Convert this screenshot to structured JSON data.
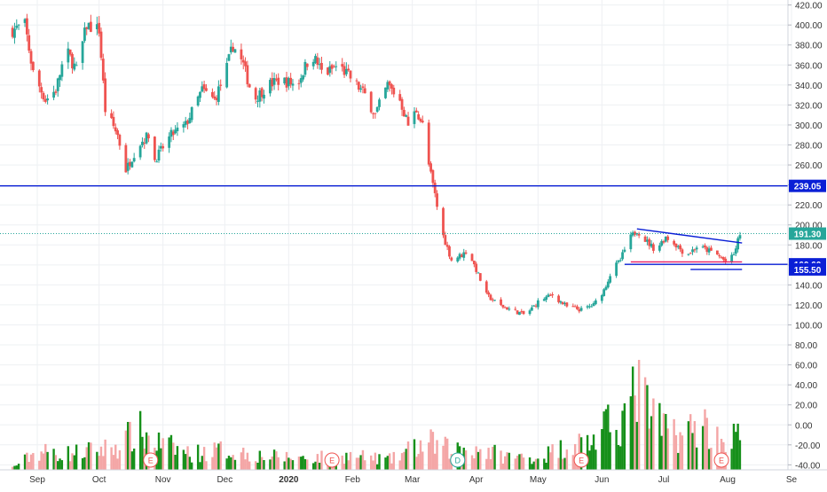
{
  "chart_data": {
    "type": "candlestick",
    "title": "",
    "xlabel": "",
    "ylabel": "",
    "ylim": [
      -45,
      425
    ],
    "grid": true,
    "y_ticks": [
      "420.00",
      "400.00",
      "380.00",
      "360.00",
      "340.00",
      "320.00",
      "300.00",
      "280.00",
      "260.00",
      "240.00",
      "220.00",
      "200.00",
      "180.00",
      "160.00",
      "140.00",
      "120.00",
      "100.00",
      "80.00",
      "60.00",
      "40.00",
      "20.00",
      "0.00",
      "-20.00",
      "-40.00"
    ],
    "x_ticks": [
      {
        "label": "Sep",
        "date": "2019-09-01"
      },
      {
        "label": "Oct",
        "date": "2019-10-01"
      },
      {
        "label": "Nov",
        "date": "2019-11-01"
      },
      {
        "label": "Dec",
        "date": "2019-12-01"
      },
      {
        "label": "2020",
        "date": "2020-01-01"
      },
      {
        "label": "Feb",
        "date": "2020-02-01"
      },
      {
        "label": "Mar",
        "date": "2020-03-01"
      },
      {
        "label": "Apr",
        "date": "2020-04-01"
      },
      {
        "label": "May",
        "date": "2020-05-01"
      },
      {
        "label": "Jun",
        "date": "2020-06-01"
      },
      {
        "label": "Jul",
        "date": "2020-07-01"
      },
      {
        "label": "Aug",
        "date": "2020-08-01"
      },
      {
        "label": "Se",
        "date": "2020-09-01"
      }
    ],
    "price_path": [
      [
        "2019-08-20",
        395
      ],
      [
        "2019-08-26",
        400
      ],
      [
        "2019-08-30",
        352
      ],
      [
        "2019-09-05",
        325
      ],
      [
        "2019-09-10",
        335
      ],
      [
        "2019-09-15",
        375
      ],
      [
        "2019-09-20",
        355
      ],
      [
        "2019-09-25",
        400
      ],
      [
        "2019-10-01",
        395
      ],
      [
        "2019-10-04",
        315
      ],
      [
        "2019-10-10",
        290
      ],
      [
        "2019-10-14",
        255
      ],
      [
        "2019-10-20",
        280
      ],
      [
        "2019-10-25",
        290
      ],
      [
        "2019-10-28",
        265
      ],
      [
        "2019-11-05",
        290
      ],
      [
        "2019-11-12",
        300
      ],
      [
        "2019-11-20",
        335
      ],
      [
        "2019-11-26",
        325
      ],
      [
        "2019-12-01",
        350
      ],
      [
        "2019-12-05",
        380
      ],
      [
        "2019-12-10",
        360
      ],
      [
        "2019-12-15",
        325
      ],
      [
        "2019-12-22",
        340
      ],
      [
        "2019-12-28",
        345
      ],
      [
        "2020-01-05",
        340
      ],
      [
        "2020-01-12",
        372
      ],
      [
        "2020-01-18",
        350
      ],
      [
        "2020-01-25",
        360
      ],
      [
        "2020-02-01",
        345
      ],
      [
        "2020-02-07",
        330
      ],
      [
        "2020-02-12",
        310
      ],
      [
        "2020-02-18",
        340
      ],
      [
        "2020-02-24",
        325
      ],
      [
        "2020-02-28",
        300
      ],
      [
        "2020-03-03",
        315
      ],
      [
        "2020-03-06",
        300
      ],
      [
        "2020-03-09",
        260
      ],
      [
        "2020-03-12",
        230
      ],
      [
        "2020-03-15",
        195
      ],
      [
        "2020-03-20",
        165
      ],
      [
        "2020-03-25",
        170
      ],
      [
        "2020-03-28",
        175
      ],
      [
        "2020-04-02",
        150
      ],
      [
        "2020-04-06",
        130
      ],
      [
        "2020-04-12",
        120
      ],
      [
        "2020-04-18",
        115
      ],
      [
        "2020-04-25",
        110
      ],
      [
        "2020-05-02",
        125
      ],
      [
        "2020-05-08",
        130
      ],
      [
        "2020-05-15",
        118
      ],
      [
        "2020-05-22",
        115
      ],
      [
        "2020-05-28",
        120
      ],
      [
        "2020-06-02",
        135
      ],
      [
        "2020-06-06",
        155
      ],
      [
        "2020-06-10",
        165
      ],
      [
        "2020-06-14",
        185
      ],
      [
        "2020-06-18",
        195
      ],
      [
        "2020-06-22",
        185
      ],
      [
        "2020-06-27",
        175
      ],
      [
        "2020-07-02",
        188
      ],
      [
        "2020-07-07",
        180
      ],
      [
        "2020-07-12",
        170
      ],
      [
        "2020-07-17",
        178
      ],
      [
        "2020-07-22",
        175
      ],
      [
        "2020-07-27",
        170
      ],
      [
        "2020-08-01",
        162
      ],
      [
        "2020-08-04",
        170
      ],
      [
        "2020-08-07",
        191.3
      ]
    ],
    "volume_path": [
      [
        "2019-08-20",
        -42
      ],
      [
        "2019-09-01",
        -22
      ],
      [
        "2019-09-15",
        -25
      ],
      [
        "2019-10-01",
        -20
      ],
      [
        "2019-10-10",
        -15
      ],
      [
        "2019-10-20",
        4
      ],
      [
        "2019-10-28",
        -10
      ],
      [
        "2019-11-15",
        -25
      ],
      [
        "2019-12-01",
        -20
      ],
      [
        "2019-12-20",
        -28
      ],
      [
        "2020-01-10",
        -30
      ],
      [
        "2020-02-01",
        -28
      ],
      [
        "2020-02-20",
        -32
      ],
      [
        "2020-03-01",
        -18
      ],
      [
        "2020-03-10",
        -12
      ],
      [
        "2020-03-20",
        -20
      ],
      [
        "2020-04-01",
        -18
      ],
      [
        "2020-04-15",
        -28
      ],
      [
        "2020-05-01",
        -30
      ],
      [
        "2020-05-15",
        -15
      ],
      [
        "2020-05-28",
        -8
      ],
      [
        "2020-06-05",
        10
      ],
      [
        "2020-06-15",
        30
      ],
      [
        "2020-06-18",
        64
      ],
      [
        "2020-06-22",
        35
      ],
      [
        "2020-06-28",
        10
      ],
      [
        "2020-07-05",
        5
      ],
      [
        "2020-07-12",
        0
      ],
      [
        "2020-07-20",
        15
      ],
      [
        "2020-07-28",
        -10
      ],
      [
        "2020-08-04",
        -5
      ],
      [
        "2020-08-07",
        5
      ]
    ],
    "horizontal_levels": [
      {
        "label": "239.05",
        "value": 239.05,
        "color": "#0a1fd6"
      },
      {
        "label": "191.30",
        "value": 191.3,
        "color": "#26a69a"
      },
      {
        "label": "160.60",
        "value": 160.6,
        "color": "#0a1fd6"
      },
      {
        "label": "155.50",
        "value": 155.5,
        "color": "#0a1fd6"
      }
    ],
    "trendlines": [
      {
        "from": [
          "2020-06-18",
          196
        ],
        "to": [
          "2020-08-08",
          182
        ],
        "color": "#0a1fd6"
      },
      {
        "from": [
          "2020-06-15",
          163
        ],
        "to": [
          "2020-08-08",
          163
        ],
        "color": "#e91e63"
      },
      {
        "from": [
          "2020-07-14",
          155.5
        ],
        "to": [
          "2020-08-08",
          155.5
        ],
        "color": "#0a1fd6"
      }
    ],
    "event_markers": [
      {
        "label": "E",
        "date": "2019-10-26",
        "color": "#ef5350"
      },
      {
        "label": "E",
        "date": "2020-01-22",
        "color": "#ef5350"
      },
      {
        "label": "D",
        "date": "2020-03-23",
        "color": "#26a69a"
      },
      {
        "label": "E",
        "date": "2020-05-22",
        "color": "#ef5350"
      },
      {
        "label": "E",
        "date": "2020-07-29",
        "color": "#ef5350"
      }
    ],
    "colors": {
      "up": "#26a69a",
      "down": "#ef5350",
      "vol_up": "#16901a",
      "vol_down": "#f4a6a6",
      "grid": "#eef0f3",
      "axis_text": "#333333"
    }
  }
}
